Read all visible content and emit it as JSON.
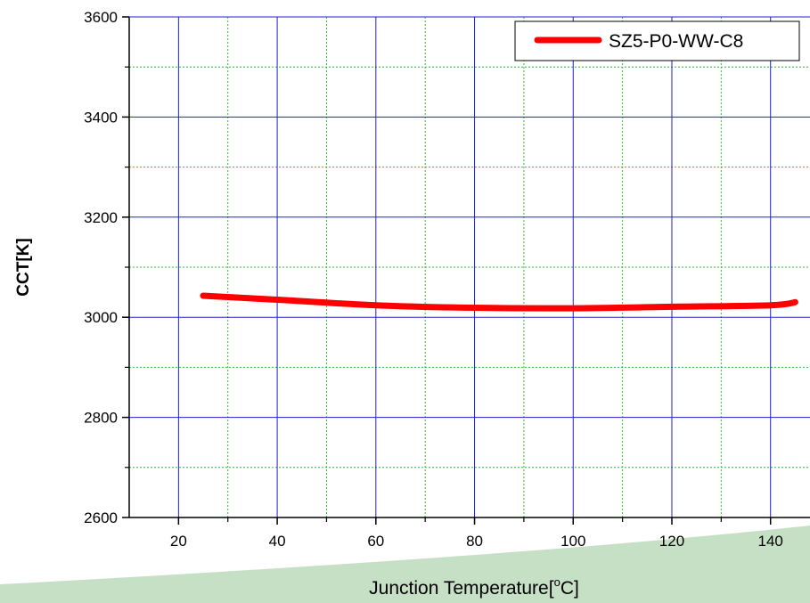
{
  "chart_data": {
    "type": "line",
    "title": "",
    "xlabel": "Junction Temperature[",
    "xlabel_sup": "o",
    "xlabel_suffix": "C]",
    "ylabel": "CCT[K]",
    "xlim": [
      10,
      148
    ],
    "ylim": [
      2600,
      3600
    ],
    "x_ticks": [
      20,
      40,
      60,
      80,
      100,
      120,
      140
    ],
    "y_ticks": [
      2600,
      2800,
      3000,
      3200,
      3400,
      3600
    ],
    "x_minor_ticks": [
      30,
      50,
      70,
      90,
      110,
      130
    ],
    "y_minor_ticks": [
      2700,
      2900,
      3100,
      3300,
      3500
    ],
    "grid": true,
    "legend_position": "top-right",
    "colors": {
      "major_grid": "#2020d0",
      "minor_grid": "#30c030",
      "series": "#ff0000",
      "decor": "#c6e0c6"
    },
    "series": [
      {
        "name": "SZ5-P0-WW-C8",
        "x": [
          25,
          40,
          60,
          80,
          100,
          120,
          140,
          145
        ],
        "values": [
          3043,
          3035,
          3024,
          3019,
          3018,
          3021,
          3024,
          3030
        ]
      }
    ]
  }
}
